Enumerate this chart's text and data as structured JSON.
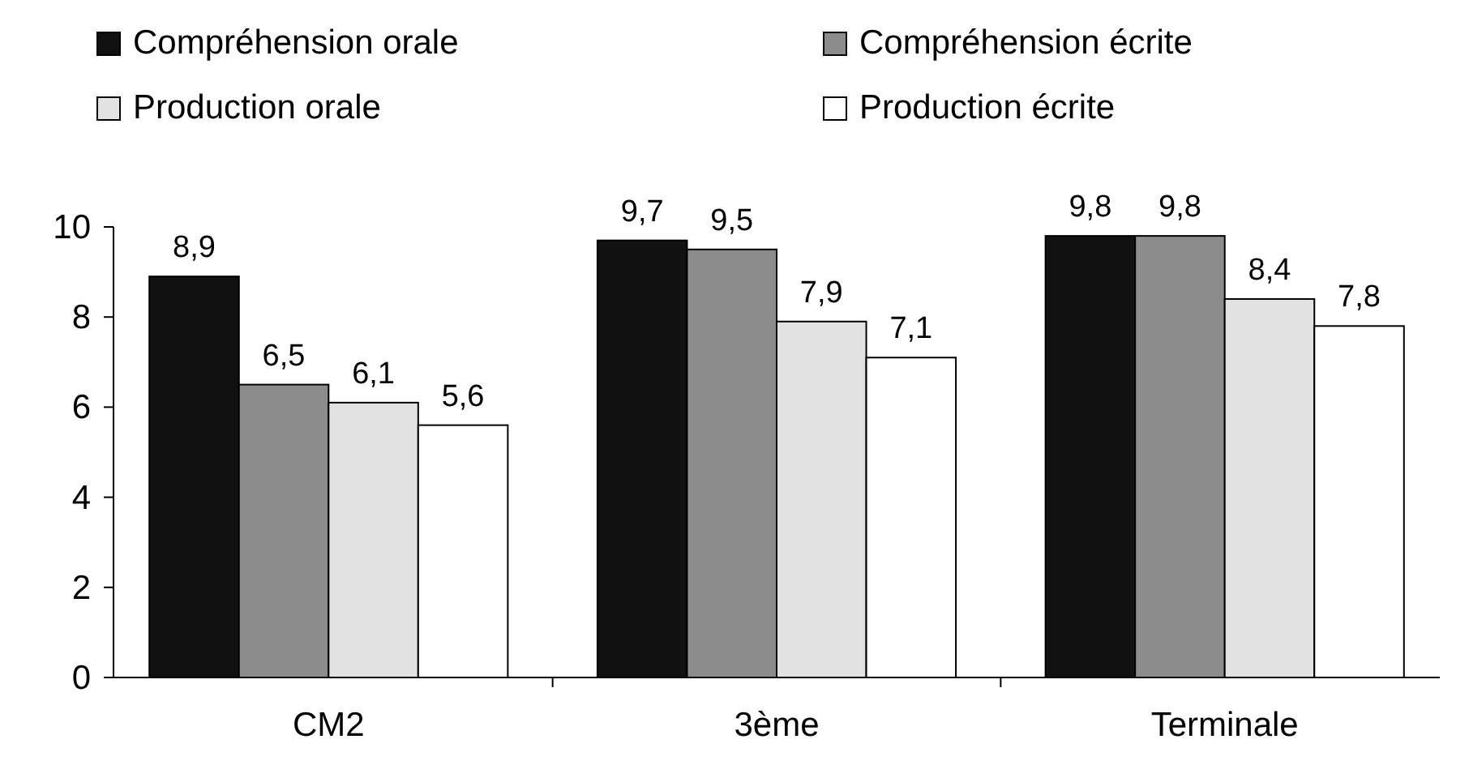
{
  "chart_data": {
    "type": "bar",
    "categories": [
      "CM2",
      "3ème",
      "Terminale"
    ],
    "series": [
      {
        "name": "Compréhension orale",
        "color": "#111111",
        "values": [
          8.9,
          9.7,
          9.8
        ],
        "value_labels": [
          "8,9",
          "9,7",
          "9,8"
        ]
      },
      {
        "name": "Compréhension écrite",
        "color": "#8c8c8c",
        "values": [
          6.5,
          9.5,
          9.8
        ],
        "value_labels": [
          "6,5",
          "9,5",
          "9,8"
        ]
      },
      {
        "name": "Production orale",
        "color": "#e2e2e2",
        "values": [
          6.1,
          7.9,
          8.4
        ],
        "value_labels": [
          "6,1",
          "7,9",
          "8,4"
        ]
      },
      {
        "name": "Production écrite",
        "color": "#ffffff",
        "values": [
          5.6,
          7.1,
          7.8
        ],
        "value_labels": [
          "5,6",
          "7,1",
          "7,8"
        ]
      }
    ],
    "ylim": [
      0,
      10
    ],
    "yticks": [
      0,
      2,
      4,
      6,
      8,
      10
    ],
    "grid": false,
    "legend": "top"
  }
}
